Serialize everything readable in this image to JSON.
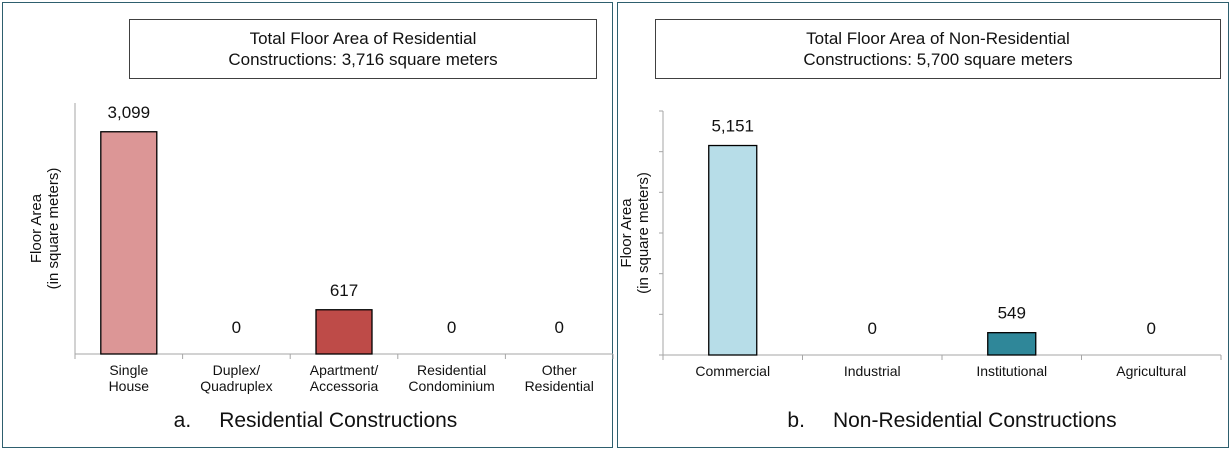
{
  "chart_data": [
    {
      "type": "bar",
      "title_line1": "Total Floor Area of Residential",
      "title_line2": "Constructions: 3,716 square meters",
      "ylabel_line1": "Floor Area",
      "ylabel_line2": "(in square meters)",
      "categories": [
        [
          "Single",
          "House"
        ],
        [
          "Duplex/",
          "Quadruplex"
        ],
        [
          "Apartment/",
          "Accessoria"
        ],
        [
          "Residential",
          "Condominium"
        ],
        [
          "Other",
          "Residential"
        ]
      ],
      "values": [
        3099,
        0,
        617,
        0,
        0
      ],
      "value_labels": [
        "3,099",
        "0",
        "617",
        "0",
        "0"
      ],
      "colors": [
        "#dc9696",
        "#c0504d",
        "#be4b48",
        "#c0504d",
        "#c0504d"
      ],
      "ylim": [
        0,
        3500
      ],
      "grid": false,
      "caption_prefix": "a.",
      "caption": "Residential Constructions"
    },
    {
      "type": "bar",
      "title_line1": "Total Floor Area of Non-Residential",
      "title_line2": "Constructions: 5,700 square meters",
      "ylabel_line1": "Floor Area",
      "ylabel_line2": "(in square meters)",
      "categories": [
        [
          "Commercial"
        ],
        [
          "Industrial"
        ],
        [
          "Institutional"
        ],
        [
          "Agricultural"
        ]
      ],
      "values": [
        5151,
        0,
        549,
        0
      ],
      "value_labels": [
        "5,151",
        "0",
        "549",
        "0"
      ],
      "colors": [
        "#b7dde8",
        "#31849b",
        "#2f8799",
        "#31849b"
      ],
      "ylim": [
        0,
        6000
      ],
      "grid": false,
      "caption_prefix": "b.",
      "caption": "Non-Residential Constructions"
    }
  ]
}
